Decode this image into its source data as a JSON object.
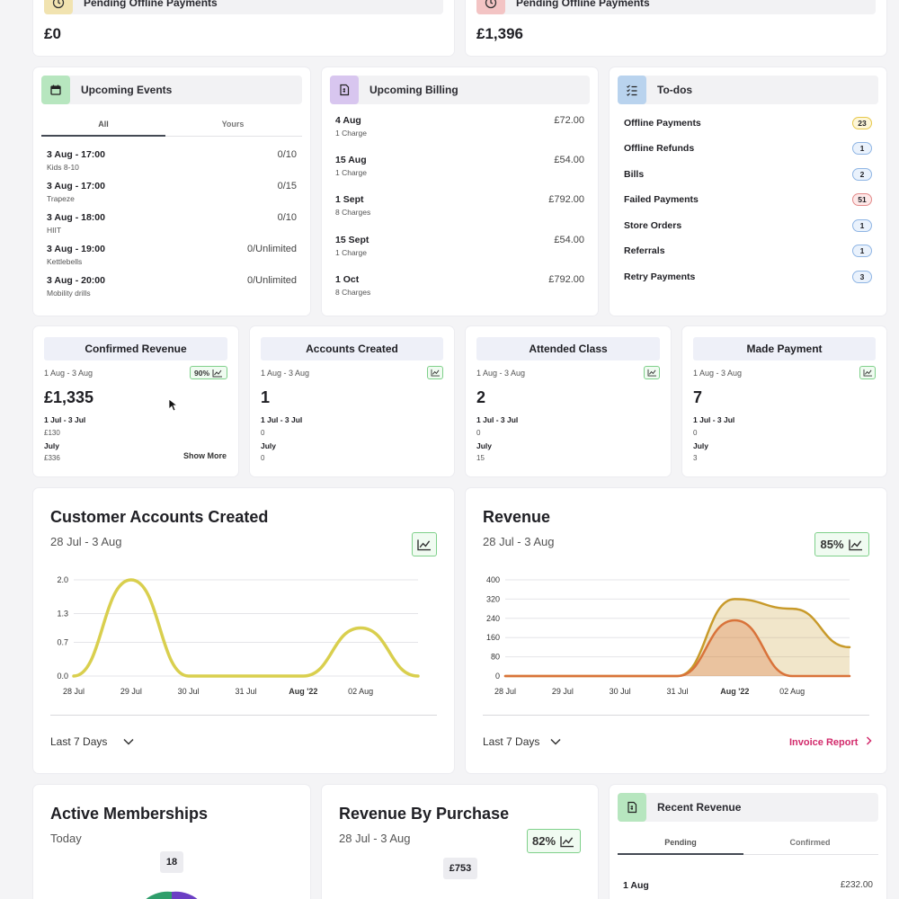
{
  "top_cards": [
    {
      "title": "Pending Offline Payments",
      "value": "£0"
    },
    {
      "title": "Pending Offline Payments",
      "value": "£1,396"
    }
  ],
  "events": {
    "title": "Upcoming Events",
    "tabs": [
      "All",
      "Yours"
    ],
    "items": [
      {
        "date": "3 Aug - 17:00",
        "name": "Kids 8-10",
        "count": "0/10"
      },
      {
        "date": "3 Aug - 17:00",
        "name": "Trapeze",
        "count": "0/15"
      },
      {
        "date": "3 Aug - 18:00",
        "name": "HIIT",
        "count": "0/10"
      },
      {
        "date": "3 Aug - 19:00",
        "name": "Kettlebells",
        "count": "0/Unlimited"
      },
      {
        "date": "3 Aug - 20:00",
        "name": "Mobility drills",
        "count": "0/Unlimited"
      }
    ]
  },
  "billing": {
    "title": "Upcoming Billing",
    "items": [
      {
        "date": "4 Aug",
        "charges": "1 Charge",
        "amount": "£72.00"
      },
      {
        "date": "15 Aug",
        "charges": "1 Charge",
        "amount": "£54.00"
      },
      {
        "date": "1 Sept",
        "charges": "8 Charges",
        "amount": "£792.00"
      },
      {
        "date": "15 Sept",
        "charges": "1 Charge",
        "amount": "£54.00"
      },
      {
        "date": "1 Oct",
        "charges": "8 Charges",
        "amount": "£792.00"
      }
    ]
  },
  "todos": {
    "title": "To-dos",
    "items": [
      {
        "label": "Offline Payments",
        "count": "23",
        "color": "yellow"
      },
      {
        "label": "Offline Refunds",
        "count": "1",
        "color": "blue"
      },
      {
        "label": "Bills",
        "count": "2",
        "color": "blue"
      },
      {
        "label": "Failed Payments",
        "count": "51",
        "color": "red"
      },
      {
        "label": "Store Orders",
        "count": "1",
        "color": "blue"
      },
      {
        "label": "Referrals",
        "count": "1",
        "color": "blue"
      },
      {
        "label": "Retry Payments",
        "count": "3",
        "color": "blue"
      }
    ]
  },
  "stats": [
    {
      "title": "Confirmed Revenue",
      "range": "1 Aug - 3 Aug",
      "trend": "90%",
      "value": "£1,335",
      "p1_label": "1 Jul - 3 Jul",
      "p1_value": "£130",
      "p2_label": "July",
      "p2_value": "£336",
      "more": "Show More"
    },
    {
      "title": "Accounts Created",
      "range": "1 Aug - 3 Aug",
      "trend": "",
      "value": "1",
      "p1_label": "1 Jul - 3 Jul",
      "p1_value": "0",
      "p2_label": "July",
      "p2_value": "0",
      "more": ""
    },
    {
      "title": "Attended Class",
      "range": "1 Aug - 3 Aug",
      "trend": "",
      "value": "2",
      "p1_label": "1 Jul - 3 Jul",
      "p1_value": "0",
      "p2_label": "July",
      "p2_value": "15",
      "more": ""
    },
    {
      "title": "Made Payment",
      "range": "1 Aug - 3 Aug",
      "trend": "",
      "value": "7",
      "p1_label": "1 Jul - 3 Jul",
      "p1_value": "0",
      "p2_label": "July",
      "p2_value": "3",
      "more": ""
    }
  ],
  "accounts_chart": {
    "title": "Customer Accounts Created",
    "range": "28 Jul - 3 Aug",
    "footer": "Last 7 Days"
  },
  "revenue_chart": {
    "title": "Revenue",
    "range": "28 Jul - 3 Aug",
    "trend": "85%",
    "footer": "Last 7 Days",
    "link": "Invoice Report"
  },
  "bottom": {
    "memberships": {
      "title": "Active Memberships",
      "sub": "Today",
      "count": "18"
    },
    "by_purchase": {
      "title": "Revenue By Purchase",
      "sub": "28 Jul - 3 Aug",
      "trend": "82%",
      "value": "£753"
    },
    "recent": {
      "title": "Recent Revenue",
      "tabs": [
        "Pending",
        "Confirmed"
      ],
      "row_date": "1 Aug",
      "row_amount": "£232.00"
    }
  },
  "chart_data": [
    {
      "type": "line",
      "x": [
        "28 Jul",
        "29 Jul",
        "30 Jul",
        "31 Jul",
        "Aug '22",
        "02 Aug",
        "03 Aug"
      ],
      "x_tick_labels": [
        "28 Jul",
        "29 Jul",
        "30 Jul",
        "31 Jul",
        "Aug '22",
        "02 Aug"
      ],
      "series": [
        {
          "values": [
            0,
            2,
            0,
            0,
            0,
            1,
            0
          ],
          "color": "#d9cf4e"
        }
      ],
      "y_ticks": [
        "0.0",
        "0.7",
        "1.3",
        "2.0"
      ],
      "ylim": [
        0,
        2
      ]
    },
    {
      "type": "area",
      "x": [
        "28 Jul",
        "29 Jul",
        "30 Jul",
        "31 Jul",
        "Aug '22",
        "02 Aug",
        "03 Aug"
      ],
      "x_tick_labels": [
        "28 Jul",
        "29 Jul",
        "30 Jul",
        "31 Jul",
        "Aug '22",
        "02 Aug"
      ],
      "series": [
        {
          "values": [
            0,
            0,
            0,
            0,
            320,
            280,
            120
          ],
          "color": "#c89a2a"
        },
        {
          "values": [
            0,
            0,
            0,
            0,
            232,
            0,
            0
          ],
          "color": "#d9733a"
        }
      ],
      "y_ticks": [
        "0",
        "80",
        "160",
        "240",
        "320",
        "400"
      ],
      "ylim": [
        0,
        400
      ]
    }
  ]
}
